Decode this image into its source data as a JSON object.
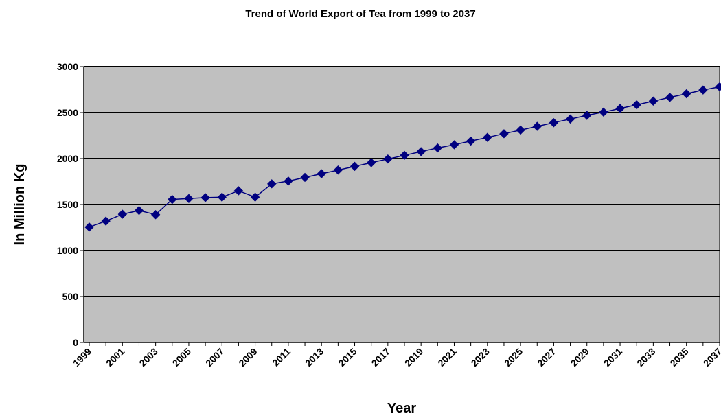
{
  "chart_data": {
    "type": "line",
    "title": "Trend of World Export of Tea from 1999 to 2037",
    "xlabel": "Year",
    "ylabel": "In Million Kg",
    "ylim": [
      0,
      3000
    ],
    "y_ticks": [
      0,
      500,
      1000,
      1500,
      2000,
      2500,
      3000
    ],
    "x_tick_labels": [
      "1999",
      "2001",
      "2003",
      "2005",
      "2007",
      "2009",
      "2011",
      "2013",
      "2015",
      "2017",
      "2019",
      "2021",
      "2023",
      "2025",
      "2027",
      "2029",
      "2031",
      "2033",
      "2035",
      "2037"
    ],
    "x": [
      1999,
      2000,
      2001,
      2002,
      2003,
      2004,
      2005,
      2006,
      2007,
      2008,
      2009,
      2010,
      2011,
      2012,
      2013,
      2014,
      2015,
      2016,
      2017,
      2018,
      2019,
      2020,
      2021,
      2022,
      2023,
      2024,
      2025,
      2026,
      2027,
      2028,
      2029,
      2030,
      2031,
      2032,
      2033,
      2034,
      2035,
      2036,
      2037
    ],
    "series": [
      {
        "values": [
          1255,
          1320,
          1395,
          1435,
          1390,
          1555,
          1565,
          1575,
          1580,
          1650,
          1580,
          1725,
          1755,
          1795,
          1835,
          1875,
          1915,
          1955,
          1995,
          2035,
          2075,
          2115,
          2150,
          2190,
          2230,
          2270,
          2310,
          2350,
          2390,
          2430,
          2470,
          2505,
          2545,
          2585,
          2625,
          2665,
          2705,
          2745,
          2780
        ],
        "color": "#000080",
        "marker": "diamond"
      }
    ],
    "plot_background": "#c0c0c0",
    "grid": true,
    "legend": "none"
  }
}
